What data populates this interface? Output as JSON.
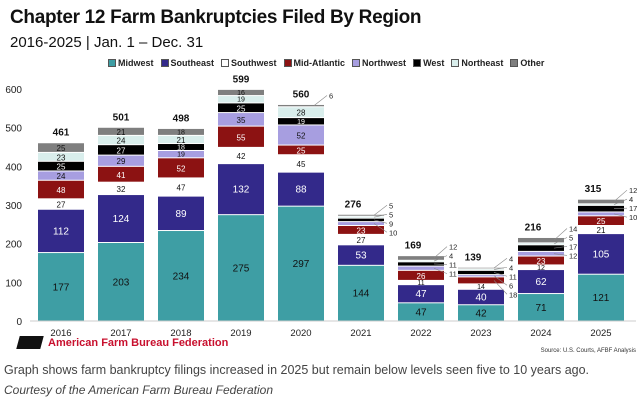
{
  "chart_data": {
    "type": "bar",
    "stacked": true,
    "title": "Chapter 12 Farm Bankruptcies Filed By Region",
    "subtitle": "2016-2025 | Jan. 1 – Dec. 31",
    "xlabel": "",
    "ylabel": "",
    "ylim": [
      0,
      600
    ],
    "yticks": [
      "0",
      "100",
      "200",
      "300",
      "400",
      "500",
      "600"
    ],
    "grid": false,
    "legend": "top",
    "categories": [
      "2016",
      "2017",
      "2018",
      "2019",
      "2020",
      "2021",
      "2022",
      "2023",
      "2024",
      "2025"
    ],
    "totals": [
      461,
      501,
      498,
      599,
      560,
      276,
      169,
      139,
      216,
      315
    ],
    "series": [
      {
        "name": "Midwest",
        "color": "#3e9ea4",
        "values": [
          177,
          203,
          234,
          275,
          297,
          144,
          47,
          42,
          71,
          121
        ]
      },
      {
        "name": "Southeast",
        "color": "#33298a",
        "values": [
          112,
          124,
          89,
          132,
          88,
          53,
          47,
          40,
          62,
          105
        ]
      },
      {
        "name": "Southwest",
        "color": "#ffffff",
        "values": [
          27,
          32,
          47,
          42,
          45,
          27,
          11,
          14,
          12,
          21
        ]
      },
      {
        "name": "Mid-Atlantic",
        "color": "#8c1212",
        "values": [
          48,
          41,
          52,
          55,
          25,
          23,
          26,
          18,
          23,
          25
        ]
      },
      {
        "name": "Northwest",
        "color": "#a79ee0",
        "values": [
          24,
          29,
          19,
          35,
          52,
          10,
          11,
          6,
          12,
          10
        ]
      },
      {
        "name": "West",
        "color": "#000000",
        "values": [
          25,
          27,
          18,
          25,
          19,
          9,
          11,
          11,
          17,
          17
        ]
      },
      {
        "name": "Northeast",
        "color": "#d9eeec",
        "values": [
          23,
          24,
          21,
          19,
          28,
          5,
          4,
          4,
          5,
          4
        ]
      },
      {
        "name": "Other",
        "color": "#7f7f7f",
        "values": [
          25,
          21,
          18,
          16,
          6,
          5,
          12,
          4,
          14,
          12
        ]
      }
    ]
  },
  "branding": {
    "org": "American Farm Bureau Federation",
    "source": "Source: U.S. Courts, AFBF Analysis"
  },
  "caption": "Graph shows farm bankruptcy filings increased in 2025 but remain below levels seen five to 10 years ago.",
  "courtesy": "Courtesy of the American Farm Bureau Federation"
}
